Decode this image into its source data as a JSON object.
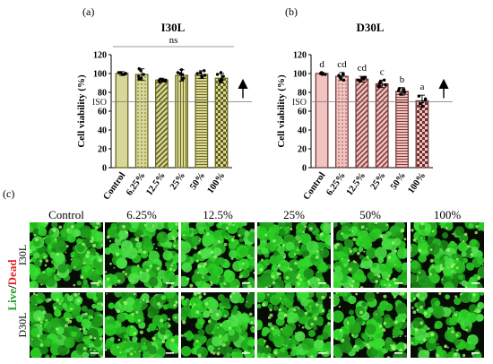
{
  "panels": {
    "a": {
      "label": "(a)"
    },
    "b": {
      "label": "(b)"
    },
    "c": {
      "label": "(c)"
    }
  },
  "micrographs": {
    "column_headers": [
      "Control",
      "6.25%",
      "12.5%",
      "25%",
      "50%",
      "100%"
    ],
    "row_labels": [
      "I30L",
      "D30L"
    ],
    "side_label_live": "Live",
    "side_label_sep": "/",
    "side_label_dead": "Dead",
    "density_row1": [
      0.74,
      0.7,
      0.7,
      0.72,
      0.68,
      0.62
    ],
    "density_row2": [
      0.72,
      0.66,
      0.66,
      0.62,
      0.55,
      0.45
    ]
  },
  "colors": {
    "live": "#1f9e2a",
    "dead": "#e0242c",
    "micrograph_bg": "#070d05",
    "i30l_bar": "#d8d79a",
    "i30l_edge": "#6d6a1c",
    "d30l_bar": "#f0c3c1",
    "d30l_edge": "#7a3a3a"
  },
  "chart_data": [
    {
      "type": "bar",
      "title": "I30L",
      "ylabel": "Cell viability (%)",
      "categories": [
        "Control",
        "6.25%",
        "12.5%",
        "25%",
        "50%",
        "100%"
      ],
      "values": [
        100,
        99,
        93,
        98,
        99,
        95
      ],
      "errors": [
        2,
        6,
        2,
        6,
        4,
        5
      ],
      "points": [
        [
          99,
          101,
          100,
          99,
          101,
          100
        ],
        [
          103,
          97,
          94,
          99,
          105,
          95
        ],
        [
          93,
          92,
          94,
          93,
          91,
          93
        ],
        [
          101,
          95,
          99,
          94,
          100,
          104
        ],
        [
          98,
          97,
          103,
          96,
          101,
          100
        ],
        [
          97,
          92,
          99,
          94,
          101,
          93
        ]
      ],
      "patterns": [
        "solid",
        "dots",
        "diag",
        "vlines",
        "hlines",
        "checker"
      ],
      "ylim": [
        0,
        120
      ],
      "yticks": [
        0,
        20,
        40,
        60,
        80,
        100,
        120
      ],
      "reference_line": {
        "label": "ISO",
        "value": 70
      },
      "significance": {
        "label": "ns"
      },
      "arrow": "up",
      "grid": false
    },
    {
      "type": "bar",
      "title": "D30L",
      "ylabel": "Cell viability (%)",
      "categories": [
        "Control",
        "6.25%",
        "12.5%",
        "25%",
        "50%",
        "100%"
      ],
      "values": [
        100,
        97,
        94,
        89,
        81,
        71
      ],
      "errors": [
        1,
        4,
        3,
        4,
        4,
        6
      ],
      "points": [
        [
          100,
          99,
          101,
          100,
          99,
          100
        ],
        [
          97,
          93,
          99,
          95,
          100,
          98
        ],
        [
          93,
          95,
          96,
          92,
          94,
          95
        ],
        [
          88,
          91,
          86,
          90,
          93,
          87
        ],
        [
          80,
          82,
          78,
          84,
          80,
          83
        ],
        [
          70,
          73,
          65,
          76,
          71,
          68
        ]
      ],
      "patterns": [
        "solid",
        "dots",
        "diag",
        "diag",
        "hlines",
        "checker"
      ],
      "letters": [
        "d",
        "cd",
        "cd",
        "c",
        "b",
        "a"
      ],
      "ylim": [
        0,
        120
      ],
      "yticks": [
        0,
        20,
        40,
        60,
        80,
        100,
        120
      ],
      "reference_line": {
        "label": "ISO",
        "value": 70
      },
      "arrow": "up",
      "grid": false
    }
  ]
}
